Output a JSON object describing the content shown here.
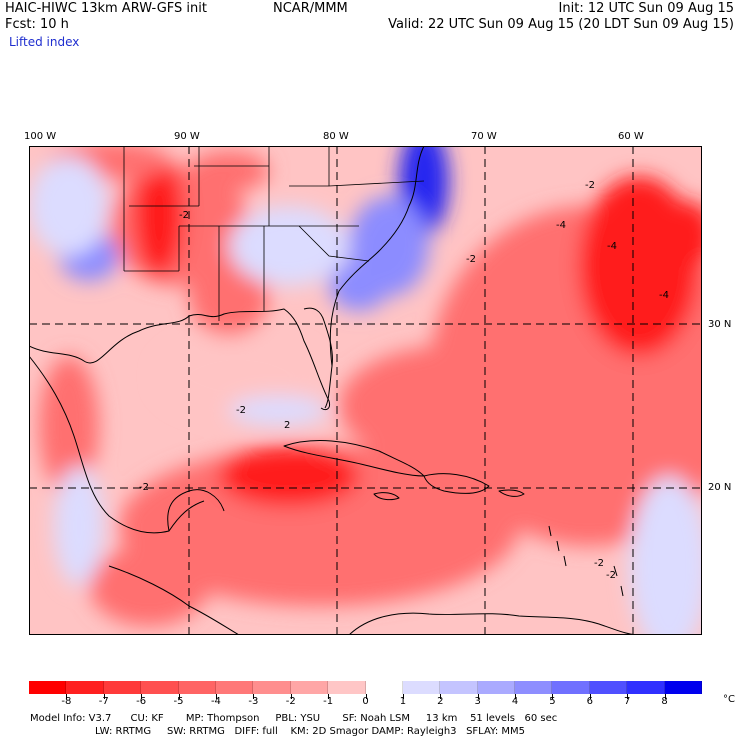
{
  "header": {
    "model_title": "HAIC-HIWC 13km ARW-GFS init",
    "center": "NCAR/MMM",
    "init": "Init: 12 UTC Sun 09 Aug 15",
    "forecast": "Fcst:   10 h",
    "valid": "Valid: 22 UTC Sun 09 Aug 15 (20 LDT Sun 09 Aug 15)",
    "field_name": "Lifted index"
  },
  "map": {
    "longitude_labels": [
      "100 W",
      "90 W",
      "80 W",
      "70 W",
      "60 W"
    ],
    "latitude_labels": [
      "30 N",
      "20 N"
    ],
    "contour_labels": [
      "-2",
      "-4",
      "2"
    ],
    "colors": {
      "very_negative": "#ff1a1a",
      "negative": "#ff7070",
      "slightly_negative": "#ffc4c4",
      "neutral": "#ffffff",
      "positive": "#c8ccff",
      "very_positive": "#2828f0"
    }
  },
  "colorbar": {
    "labels": [
      "-8",
      "-7",
      "-6",
      "-5",
      "-4",
      "-3",
      "-2",
      "-1",
      "0",
      "1",
      "2",
      "3",
      "4",
      "5",
      "6",
      "7",
      "8"
    ],
    "unit": "°C",
    "colors": [
      "#ff0000",
      "#ff2020",
      "#ff3a3a",
      "#ff5050",
      "#ff6464",
      "#ff7878",
      "#ff8e8e",
      "#ffa6a6",
      "#ffc6c6",
      "#ffffff",
      "#dcdcff",
      "#c4c4ff",
      "#aaaaff",
      "#8e8eff",
      "#7070ff",
      "#5050ff",
      "#3030ff",
      "#0000ee"
    ]
  },
  "footer": {
    "line1": "Model Info: V3.7      CU: KF       MP: Thompson     PBL: YSU       SF: Noah LSM     13 km    51 levels   60 sec",
    "line2": "LW: RRTMG     SW: RRTMG   DIFF: full    KM: 2D Smagor DAMP: Rayleigh3   SFLAY: MM5"
  }
}
